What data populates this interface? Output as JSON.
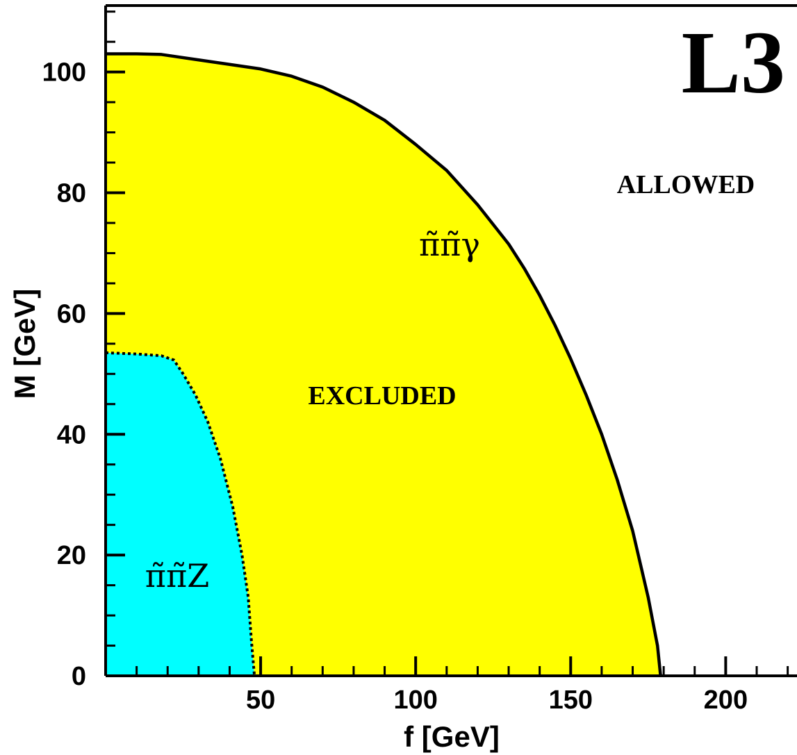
{
  "chart_data": {
    "type": "area",
    "title": "",
    "xlabel": "f [GeV]",
    "ylabel": "M [GeV]",
    "xlim": [
      0,
      223
    ],
    "ylim": [
      0,
      111
    ],
    "xticks": [
      50,
      100,
      150,
      200
    ],
    "yticks": [
      0,
      20,
      40,
      60,
      80,
      100
    ],
    "logo": "L3",
    "annotations": {
      "allowed": "ALLOWED",
      "excluded": "EXCLUDED",
      "gamma_channel": "π̃π̃γ",
      "z_channel": "π̃π̃Z"
    },
    "series": [
      {
        "name": "π̃π̃γ",
        "color": "#ffff00",
        "line_style": "solid",
        "points": [
          [
            0,
            103
          ],
          [
            10,
            103
          ],
          [
            18,
            102.9
          ],
          [
            30,
            102
          ],
          [
            50,
            100.5
          ],
          [
            60,
            99.3
          ],
          [
            70,
            97.5
          ],
          [
            80,
            95
          ],
          [
            90,
            92
          ],
          [
            100,
            88
          ],
          [
            110,
            83.7
          ],
          [
            120,
            78
          ],
          [
            130,
            71.5
          ],
          [
            135,
            67.5
          ],
          [
            140,
            63
          ],
          [
            145,
            58
          ],
          [
            150,
            52.5
          ],
          [
            155,
            46.5
          ],
          [
            160,
            40
          ],
          [
            165,
            32.5
          ],
          [
            170,
            24
          ],
          [
            175,
            13
          ],
          [
            178,
            5
          ],
          [
            179,
            0
          ]
        ]
      },
      {
        "name": "π̃π̃Z",
        "color": "#00ffff",
        "line_style": "dotted",
        "points": [
          [
            0,
            53.5
          ],
          [
            10,
            53.3
          ],
          [
            18,
            53
          ],
          [
            22,
            52.3
          ],
          [
            25,
            50
          ],
          [
            29,
            46.5
          ],
          [
            33,
            42
          ],
          [
            37,
            36
          ],
          [
            41,
            28
          ],
          [
            44,
            20
          ],
          [
            46,
            13
          ],
          [
            47,
            6
          ],
          [
            48,
            0
          ]
        ]
      }
    ]
  }
}
